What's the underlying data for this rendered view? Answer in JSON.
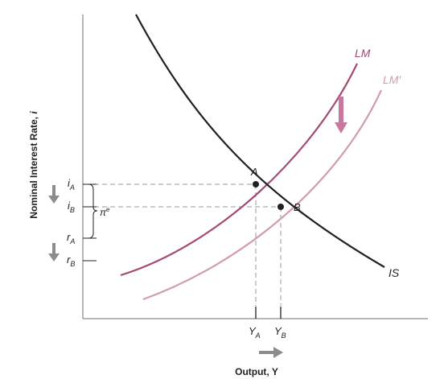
{
  "axes": {
    "ylabel_main": "Nominal Interest Rate, ",
    "ylabel_var": "i",
    "xlabel": "Output, Y"
  },
  "curves": {
    "is_label": "IS",
    "lm_label": "LM",
    "lm_prime_label": "LM′"
  },
  "points": {
    "a_label": "A",
    "b_label": "B"
  },
  "y_ticks": {
    "iA_base": "i",
    "iA_sub": "A",
    "iB_base": "i",
    "iB_sub": "B",
    "rA_base": "r",
    "rA_sub": "A",
    "rB_base": "r",
    "rB_sub": "B"
  },
  "x_ticks": {
    "YA_base": "Y",
    "YA_sub": "A",
    "YB_base": "Y",
    "YB_sub": "B"
  },
  "brace_label": {
    "base": "π",
    "sup": "e"
  },
  "colors": {
    "is_curve": "#231f20",
    "lm_curve": "#a24a74",
    "lm_prime_curve": "#d19ab5",
    "shift_arrow": "#c8799d",
    "grey_arrows": "#8c8c8c",
    "axes": "#6d6d6d"
  }
}
